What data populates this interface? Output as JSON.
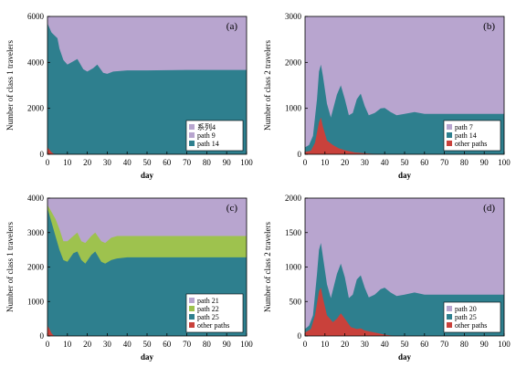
{
  "colors": {
    "purple": "#b8a5cf",
    "teal": "#2e7f8e",
    "green": "#9ec24e",
    "red": "#c9413b"
  },
  "chart_data": [
    {
      "id": "a",
      "type": "area",
      "stacked": true,
      "panel_label": "(a)",
      "xlabel": "day",
      "ylabel": "Number of class 1 travelers",
      "xlim": [
        0,
        100
      ],
      "ylim": [
        0,
        6000
      ],
      "xticks": [
        "0",
        "10",
        "20",
        "30",
        "40",
        "50",
        "60",
        "70",
        "80",
        "90",
        "100"
      ],
      "yticks": [
        "0",
        "2000",
        "4000",
        "6000"
      ],
      "grid": false,
      "legend_placement": "bottom-right",
      "legend": [
        "系列4",
        "path 9",
        "path 14"
      ],
      "total": 6000,
      "series": [
        {
          "name": "path 14",
          "color": "teal",
          "points": [
            [
              0,
              5700
            ],
            [
              2,
              5300
            ],
            [
              5,
              5050
            ],
            [
              6,
              4600
            ],
            [
              8,
              4100
            ],
            [
              10,
              3900
            ],
            [
              13,
              4050
            ],
            [
              15,
              4150
            ],
            [
              18,
              3700
            ],
            [
              20,
              3600
            ],
            [
              23,
              3750
            ],
            [
              25,
              3900
            ],
            [
              28,
              3550
            ],
            [
              30,
              3500
            ],
            [
              33,
              3600
            ],
            [
              40,
              3650
            ],
            [
              50,
              3650
            ],
            [
              60,
              3660
            ],
            [
              70,
              3670
            ],
            [
              80,
              3670
            ],
            [
              90,
              3670
            ],
            [
              100,
              3670
            ]
          ]
        },
        {
          "name": "",
          "color": "red",
          "points": [
            [
              0,
              300
            ],
            [
              1,
              200
            ],
            [
              2,
              90
            ],
            [
              3,
              30
            ],
            [
              4,
              0
            ],
            [
              100,
              0
            ]
          ]
        }
      ]
    },
    {
      "id": "b",
      "type": "area",
      "stacked": true,
      "panel_label": "(b)",
      "xlabel": "day",
      "ylabel": "Number of class 2 travelers",
      "xlim": [
        0,
        100
      ],
      "ylim": [
        0,
        3000
      ],
      "xticks": [
        "0",
        "10",
        "20",
        "30",
        "40",
        "50",
        "60",
        "70",
        "80",
        "90",
        "100"
      ],
      "yticks": [
        "0",
        "1000",
        "2000",
        "3000"
      ],
      "grid": false,
      "legend_placement": "bottom-right",
      "legend": [
        "path 7",
        "path 14",
        "other paths"
      ],
      "total": 3000,
      "series": [
        {
          "name": "path 14",
          "color": "teal",
          "points": [
            [
              0,
              150
            ],
            [
              2,
              200
            ],
            [
              4,
              400
            ],
            [
              6,
              1200
            ],
            [
              7,
              1800
            ],
            [
              8,
              1950
            ],
            [
              9,
              1700
            ],
            [
              11,
              1100
            ],
            [
              13,
              800
            ],
            [
              16,
              1300
            ],
            [
              18,
              1500
            ],
            [
              20,
              1200
            ],
            [
              22,
              850
            ],
            [
              24,
              900
            ],
            [
              26,
              1200
            ],
            [
              28,
              1320
            ],
            [
              30,
              1050
            ],
            [
              32,
              850
            ],
            [
              35,
              900
            ],
            [
              38,
              1000
            ],
            [
              40,
              1010
            ],
            [
              43,
              920
            ],
            [
              46,
              850
            ],
            [
              50,
              880
            ],
            [
              55,
              920
            ],
            [
              60,
              880
            ],
            [
              70,
              880
            ],
            [
              80,
              880
            ],
            [
              90,
              880
            ],
            [
              100,
              880
            ]
          ]
        },
        {
          "name": "other paths",
          "color": "red",
          "points": [
            [
              0,
              50
            ],
            [
              3,
              80
            ],
            [
              5,
              250
            ],
            [
              7,
              700
            ],
            [
              8,
              800
            ],
            [
              9,
              600
            ],
            [
              11,
              300
            ],
            [
              14,
              200
            ],
            [
              17,
              130
            ],
            [
              20,
              90
            ],
            [
              25,
              40
            ],
            [
              28,
              30
            ],
            [
              32,
              15
            ],
            [
              36,
              5
            ],
            [
              40,
              0
            ],
            [
              100,
              0
            ]
          ]
        }
      ]
    },
    {
      "id": "c",
      "type": "area",
      "stacked": true,
      "panel_label": "(c)",
      "xlabel": "day",
      "ylabel": "Number of class 1 travelers",
      "xlim": [
        0,
        100
      ],
      "ylim": [
        0,
        4000
      ],
      "xticks": [
        "0",
        "10",
        "20",
        "30",
        "40",
        "50",
        "60",
        "70",
        "80",
        "90",
        "100"
      ],
      "yticks": [
        "0",
        "1000",
        "2000",
        "3000",
        "4000"
      ],
      "grid": false,
      "legend_placement": "bottom-right",
      "legend": [
        "path 21",
        "path 22",
        "path 25",
        "other paths"
      ],
      "total": 4000,
      "series": [
        {
          "name": "path 22",
          "color": "green",
          "points": [
            [
              0,
              3800
            ],
            [
              2,
              3600
            ],
            [
              4,
              3400
            ],
            [
              6,
              3100
            ],
            [
              8,
              2750
            ],
            [
              10,
              2750
            ],
            [
              13,
              2900
            ],
            [
              15,
              3000
            ],
            [
              17,
              2750
            ],
            [
              19,
              2700
            ],
            [
              22,
              2900
            ],
            [
              24,
              3000
            ],
            [
              27,
              2750
            ],
            [
              29,
              2700
            ],
            [
              32,
              2850
            ],
            [
              35,
              2900
            ],
            [
              40,
              2900
            ],
            [
              50,
              2900
            ],
            [
              60,
              2900
            ],
            [
              70,
              2900
            ],
            [
              80,
              2900
            ],
            [
              90,
              2900
            ],
            [
              100,
              2900
            ]
          ]
        },
        {
          "name": "path 25",
          "color": "teal",
          "points": [
            [
              0,
              3700
            ],
            [
              2,
              3300
            ],
            [
              4,
              2900
            ],
            [
              6,
              2500
            ],
            [
              8,
              2200
            ],
            [
              10,
              2150
            ],
            [
              13,
              2400
            ],
            [
              15,
              2450
            ],
            [
              17,
              2200
            ],
            [
              19,
              2100
            ],
            [
              22,
              2350
            ],
            [
              24,
              2450
            ],
            [
              27,
              2150
            ],
            [
              29,
              2100
            ],
            [
              32,
              2200
            ],
            [
              35,
              2250
            ],
            [
              40,
              2280
            ],
            [
              50,
              2280
            ],
            [
              60,
              2280
            ],
            [
              70,
              2280
            ],
            [
              80,
              2280
            ],
            [
              90,
              2280
            ],
            [
              100,
              2280
            ]
          ]
        },
        {
          "name": "other paths",
          "color": "red",
          "points": [
            [
              0,
              300
            ],
            [
              1,
              200
            ],
            [
              2,
              80
            ],
            [
              3,
              20
            ],
            [
              4,
              0
            ],
            [
              100,
              0
            ]
          ]
        }
      ]
    },
    {
      "id": "d",
      "type": "area",
      "stacked": true,
      "panel_label": "(d)",
      "xlabel": "day",
      "ylabel": "Number of class 2 travelers",
      "xlim": [
        0,
        100
      ],
      "ylim": [
        0,
        2000
      ],
      "xticks": [
        "0",
        "10",
        "20",
        "30",
        "40",
        "50",
        "60",
        "70",
        "80",
        "90",
        "100"
      ],
      "yticks": [
        "0",
        "500",
        "1000",
        "1500",
        "2000"
      ],
      "grid": false,
      "legend_placement": "bottom-right",
      "legend": [
        "path 20",
        "path 25",
        "other paths"
      ],
      "total": 2000,
      "series": [
        {
          "name": "path 25",
          "color": "teal",
          "points": [
            [
              0,
              100
            ],
            [
              2,
              150
            ],
            [
              4,
              300
            ],
            [
              6,
              900
            ],
            [
              7,
              1250
            ],
            [
              8,
              1350
            ],
            [
              9,
              1150
            ],
            [
              11,
              750
            ],
            [
              13,
              550
            ],
            [
              16,
              900
            ],
            [
              18,
              1050
            ],
            [
              20,
              850
            ],
            [
              22,
              550
            ],
            [
              24,
              600
            ],
            [
              26,
              820
            ],
            [
              28,
              880
            ],
            [
              30,
              700
            ],
            [
              32,
              560
            ],
            [
              35,
              600
            ],
            [
              38,
              680
            ],
            [
              40,
              700
            ],
            [
              43,
              630
            ],
            [
              46,
              580
            ],
            [
              50,
              600
            ],
            [
              55,
              630
            ],
            [
              60,
              600
            ],
            [
              70,
              600
            ],
            [
              80,
              600
            ],
            [
              90,
              600
            ],
            [
              100,
              600
            ]
          ]
        },
        {
          "name": "other paths",
          "color": "red",
          "points": [
            [
              0,
              50
            ],
            [
              3,
              100
            ],
            [
              5,
              300
            ],
            [
              7,
              650
            ],
            [
              8,
              700
            ],
            [
              9,
              550
            ],
            [
              11,
              300
            ],
            [
              14,
              200
            ],
            [
              16,
              250
            ],
            [
              18,
              330
            ],
            [
              20,
              250
            ],
            [
              23,
              130
            ],
            [
              26,
              100
            ],
            [
              28,
              110
            ],
            [
              30,
              80
            ],
            [
              35,
              50
            ],
            [
              40,
              20
            ],
            [
              45,
              0
            ],
            [
              100,
              0
            ]
          ]
        }
      ]
    }
  ]
}
